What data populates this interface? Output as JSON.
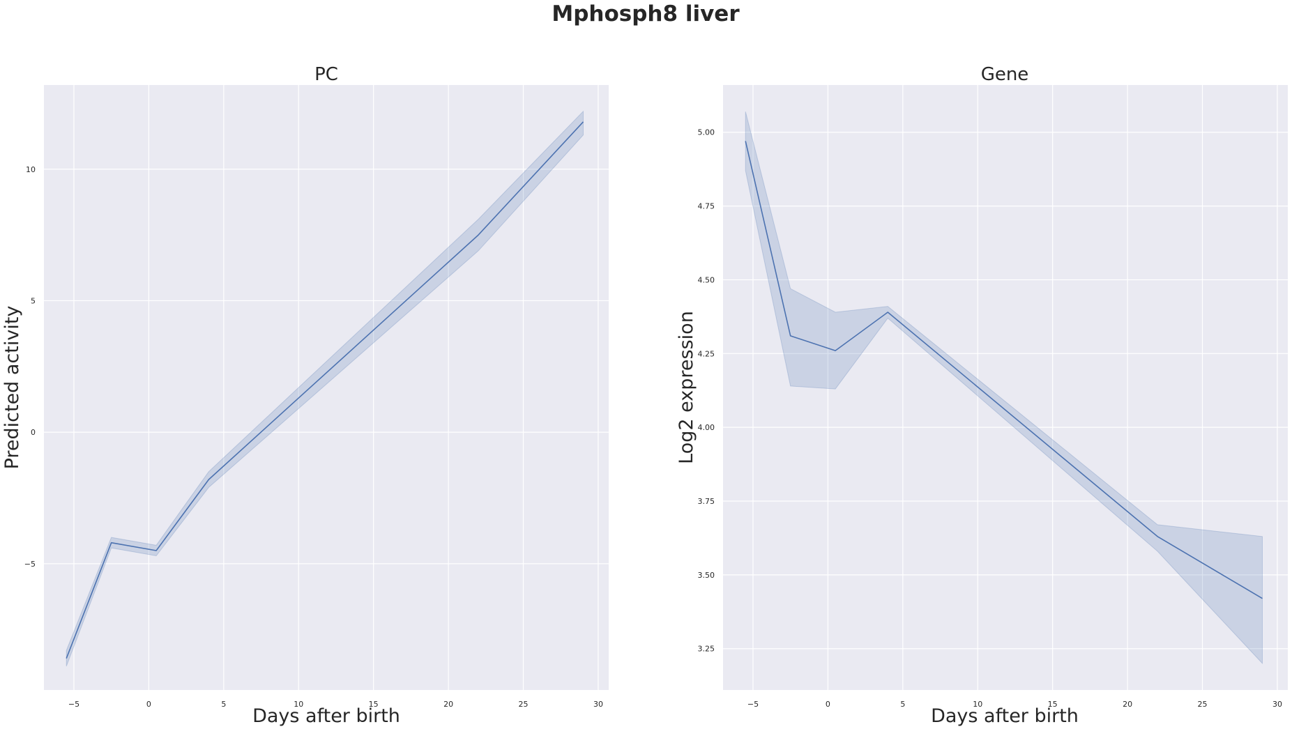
{
  "figure": {
    "title": "Mphosph8 liver"
  },
  "chart_data": [
    {
      "type": "line",
      "title": "PC",
      "xlabel": "Days after birth",
      "ylabel": "Predicted activity",
      "xlim": [
        -7,
        30.7
      ],
      "ylim": [
        -9.8,
        13.2
      ],
      "xticks": [
        -5,
        0,
        5,
        10,
        15,
        20,
        25,
        30
      ],
      "xtick_labels": [
        "−5",
        "0",
        "5",
        "10",
        "15",
        "20",
        "25",
        "30"
      ],
      "yticks": [
        -5,
        0,
        5,
        10
      ],
      "ytick_labels": [
        "−5",
        "0",
        "5",
        "10"
      ],
      "grid": true,
      "line_color": "#4c72b0",
      "band_color": "#4c72b0",
      "series": [
        {
          "x": [
            -5.5,
            -2.5,
            0.5,
            4,
            22,
            29
          ],
          "y": [
            -8.6,
            -4.2,
            -4.5,
            -1.8,
            7.5,
            11.8
          ],
          "ci_low": [
            -8.9,
            -4.4,
            -4.7,
            -2.1,
            6.9,
            11.3
          ],
          "ci_high": [
            -8.3,
            -4.0,
            -4.3,
            -1.5,
            8.1,
            12.2
          ]
        }
      ]
    },
    {
      "type": "line",
      "title": "Gene",
      "xlabel": "Days after birth",
      "ylabel": "Log2 expression",
      "xlim": [
        -7,
        30.7
      ],
      "ylim": [
        3.11,
        5.16
      ],
      "xticks": [
        -5,
        0,
        5,
        10,
        15,
        20,
        25,
        30
      ],
      "xtick_labels": [
        "−5",
        "0",
        "5",
        "10",
        "15",
        "20",
        "25",
        "30"
      ],
      "yticks": [
        3.25,
        3.5,
        3.75,
        4.0,
        4.25,
        4.5,
        4.75,
        5.0
      ],
      "ytick_labels": [
        "3.25",
        "3.50",
        "3.75",
        "4.00",
        "4.25",
        "4.50",
        "4.75",
        "5.00"
      ],
      "grid": true,
      "line_color": "#4c72b0",
      "band_color": "#4c72b0",
      "series": [
        {
          "x": [
            -5.5,
            -2.5,
            0.5,
            4,
            22,
            29
          ],
          "y": [
            4.97,
            4.31,
            4.26,
            4.39,
            3.63,
            3.42
          ],
          "ci_low": [
            4.87,
            4.14,
            4.13,
            4.37,
            3.58,
            3.2
          ],
          "ci_high": [
            5.07,
            4.47,
            4.39,
            4.41,
            3.67,
            3.63
          ]
        }
      ]
    }
  ]
}
